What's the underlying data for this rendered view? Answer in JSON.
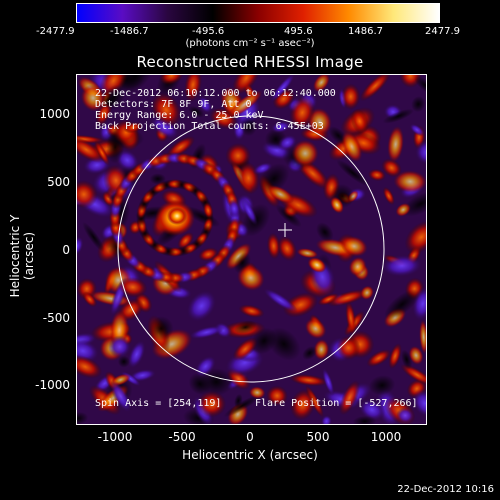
{
  "colorbar": {
    "ticks": [
      "-2477.9",
      "-1486.7",
      "-495.6",
      "495.6",
      "1486.7",
      "2477.9"
    ],
    "units": "(photons cm⁻² s⁻¹ asec⁻²)",
    "colors": [
      "#0000ff",
      "#5a0cc4",
      "#2a0640",
      "#000000",
      "#8a0000",
      "#e02000",
      "#ff8a00",
      "#ffe87a",
      "#ffffff"
    ]
  },
  "plot": {
    "title": "Reconstructed RHESSI Image",
    "info_lines": [
      "22-Dec-2012 06:10:12.000 to 06:12:40.000",
      "Detectors: 7F 8F 9F, Att 0",
      "Energy Range: 6.0 - 25.0 keV",
      "Back Projection    Total counts: 6.45E+03"
    ],
    "spin_axis": "Spin Axis = [254,119]",
    "flare_position": "Flare Position = [-527,266]",
    "x_axis_label": "Heliocentric X (arcsec)",
    "y_axis_label": "Heliocentric Y (arcsec)",
    "x_ticks": [
      "-1000",
      "-500",
      "0",
      "500",
      "1000"
    ],
    "y_ticks": [
      "1000",
      "500",
      "0",
      "-500",
      "-1000"
    ]
  },
  "footer": {
    "timestamp": "22-Dec-2012 10:16"
  }
}
